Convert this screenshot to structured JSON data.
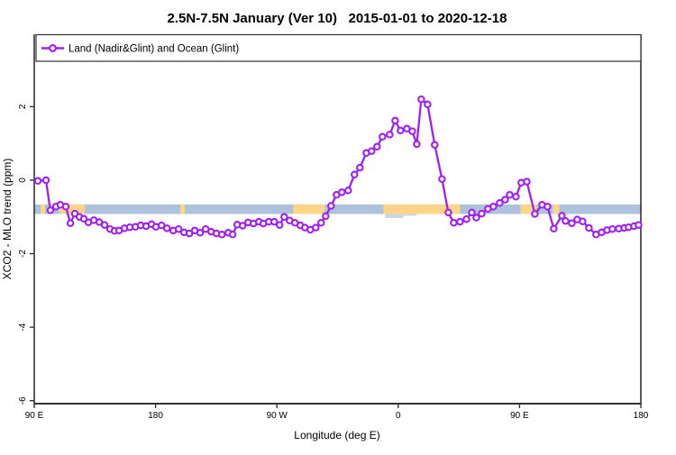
{
  "title": "2.5N-7.5N January (Ver 10)   2015-01-01 to 2020-12-18",
  "legend": {
    "label": "Land (Nadir&Glint) and Ocean (Glint)"
  },
  "axes": {
    "xlabel": "Longitude (deg E)",
    "ylabel": "XCO2 - MLO trend (ppm)"
  },
  "colors": {
    "series": "#A020F0",
    "ocean_band": "#ADC3DB",
    "land_band": "#FCD588",
    "coast_bump": "#C8D8E9",
    "axis": "#333333"
  },
  "chart_data": {
    "type": "line",
    "title": "2.5N-7.5N January (Ver 10)   2015-01-01 to 2020-12-18",
    "xlabel": "Longitude (deg E)",
    "ylabel": "XCO2 - MLO trend (ppm)",
    "legend_entries": [
      "Land (Nadir&Glint) and Ocean (Glint)"
    ],
    "legend_position": "top-full-width",
    "grid": false,
    "xlim": [
      90,
      540
    ],
    "ylim": [
      -6.08,
      3.97
    ],
    "x_ticks": [
      {
        "value": 90,
        "label": "90 E"
      },
      {
        "value": 180,
        "label": "180"
      },
      {
        "value": 270,
        "label": "90 W"
      },
      {
        "value": 360,
        "label": "0"
      },
      {
        "value": 450,
        "label": "90 E"
      },
      {
        "value": 540,
        "label": "180"
      }
    ],
    "y_ticks": [
      {
        "value": 2,
        "label": "2"
      },
      {
        "value": 0,
        "label": "0"
      },
      {
        "value": -2,
        "label": "-2"
      },
      {
        "value": -4,
        "label": "-4"
      },
      {
        "value": -6,
        "label": "-6"
      }
    ],
    "surface_band": {
      "y_top": -0.66,
      "y_bottom": -0.92,
      "ocean_color": "#ADC3DB",
      "land_color": "#FCD588",
      "land_segments": [
        [
          94.7,
          98.0
        ],
        [
          100.0,
          103.4
        ],
        [
          108.7,
          127.5
        ],
        [
          198.4,
          201.8
        ],
        [
          282.1,
          305.5
        ],
        [
          349.0,
          405.9
        ],
        [
          450.7,
          462.7
        ],
        [
          474.8,
          479.5
        ]
      ],
      "coast_bumps": [
        {
          "x": [
            350.3,
            363.7
          ],
          "y": [
            -0.92,
            -1.03
          ],
          "color": "#C8D8E9"
        },
        {
          "x": [
            363.7,
            373.7
          ],
          "y": [
            -0.92,
            -0.97
          ],
          "color": "#C8D8E9"
        }
      ]
    },
    "series": [
      {
        "name": "Land (Nadir&Glint) and Ocean (Glint)",
        "color": "#A020F0",
        "marker": "open-circle",
        "points": [
          [
            92.7,
            -0.02
          ],
          [
            98.7,
            0.0
          ],
          [
            102.0,
            -0.82
          ],
          [
            106.1,
            -0.72
          ],
          [
            109.4,
            -0.67
          ],
          [
            113.4,
            -0.72
          ],
          [
            116.8,
            -1.17
          ],
          [
            120.1,
            -0.91
          ],
          [
            123.5,
            -1.0
          ],
          [
            126.8,
            -1.05
          ],
          [
            130.2,
            -1.15
          ],
          [
            134.2,
            -1.09
          ],
          [
            138.2,
            -1.14
          ],
          [
            142.2,
            -1.22
          ],
          [
            146.2,
            -1.33
          ],
          [
            149.6,
            -1.38
          ],
          [
            152.9,
            -1.37
          ],
          [
            156.9,
            -1.31
          ],
          [
            160.9,
            -1.28
          ],
          [
            165.0,
            -1.27
          ],
          [
            169.0,
            -1.23
          ],
          [
            173.0,
            -1.25
          ],
          [
            177.0,
            -1.2
          ],
          [
            180.3,
            -1.27
          ],
          [
            184.4,
            -1.23
          ],
          [
            188.4,
            -1.31
          ],
          [
            193.1,
            -1.37
          ],
          [
            197.1,
            -1.33
          ],
          [
            201.1,
            -1.42
          ],
          [
            205.1,
            -1.45
          ],
          [
            209.1,
            -1.37
          ],
          [
            213.1,
            -1.43
          ],
          [
            217.2,
            -1.33
          ],
          [
            221.2,
            -1.4
          ],
          [
            225.2,
            -1.45
          ],
          [
            229.2,
            -1.48
          ],
          [
            233.9,
            -1.43
          ],
          [
            237.2,
            -1.48
          ],
          [
            240.6,
            -1.21
          ],
          [
            244.6,
            -1.24
          ],
          [
            248.6,
            -1.15
          ],
          [
            252.6,
            -1.18
          ],
          [
            256.6,
            -1.13
          ],
          [
            260.0,
            -1.18
          ],
          [
            264.0,
            -1.13
          ],
          [
            268.0,
            -1.13
          ],
          [
            272.0,
            -1.22
          ],
          [
            275.4,
            -1.0
          ],
          [
            279.4,
            -1.1
          ],
          [
            283.4,
            -1.16
          ],
          [
            287.4,
            -1.23
          ],
          [
            290.8,
            -1.29
          ],
          [
            294.8,
            -1.35
          ],
          [
            298.8,
            -1.29
          ],
          [
            302.8,
            -1.16
          ],
          [
            306.2,
            -0.98
          ],
          [
            310.2,
            -0.7
          ],
          [
            314.2,
            -0.4
          ],
          [
            318.2,
            -0.33
          ],
          [
            322.9,
            -0.28
          ],
          [
            327.6,
            0.15
          ],
          [
            331.6,
            0.34
          ],
          [
            336.3,
            0.74
          ],
          [
            340.3,
            0.79
          ],
          [
            344.3,
            0.91
          ],
          [
            348.3,
            1.18
          ],
          [
            353.7,
            1.24
          ],
          [
            357.7,
            1.62
          ],
          [
            361.7,
            1.35
          ],
          [
            366.4,
            1.4
          ],
          [
            370.4,
            1.33
          ],
          [
            373.8,
            0.98
          ],
          [
            377.1,
            2.2
          ],
          [
            381.8,
            2.06
          ],
          [
            387.1,
            0.96
          ],
          [
            392.5,
            0.03
          ],
          [
            397.2,
            -0.88
          ],
          [
            401.2,
            -1.16
          ],
          [
            405.9,
            -1.13
          ],
          [
            410.6,
            -1.06
          ],
          [
            414.6,
            -0.88
          ],
          [
            417.9,
            -1.02
          ],
          [
            421.9,
            -0.91
          ],
          [
            426.6,
            -0.78
          ],
          [
            430.6,
            -0.72
          ],
          [
            435.3,
            -0.62
          ],
          [
            439.3,
            -0.53
          ],
          [
            442.7,
            -0.4
          ],
          [
            447.3,
            -0.45
          ],
          [
            451.3,
            -0.07
          ],
          [
            455.4,
            -0.04
          ],
          [
            461.4,
            -0.92
          ],
          [
            466.7,
            -0.67
          ],
          [
            470.7,
            -0.72
          ],
          [
            475.4,
            -1.32
          ],
          [
            481.4,
            -0.97
          ],
          [
            484.1,
            -1.11
          ],
          [
            488.8,
            -1.17
          ],
          [
            492.8,
            -1.07
          ],
          [
            496.8,
            -1.12
          ],
          [
            501.5,
            -1.3
          ],
          [
            506.8,
            -1.48
          ],
          [
            510.9,
            -1.42
          ],
          [
            514.9,
            -1.36
          ],
          [
            518.9,
            -1.33
          ],
          [
            523.6,
            -1.32
          ],
          [
            527.6,
            -1.3
          ],
          [
            530.9,
            -1.28
          ],
          [
            534.9,
            -1.25
          ],
          [
            538.3,
            -1.22
          ]
        ]
      }
    ]
  }
}
